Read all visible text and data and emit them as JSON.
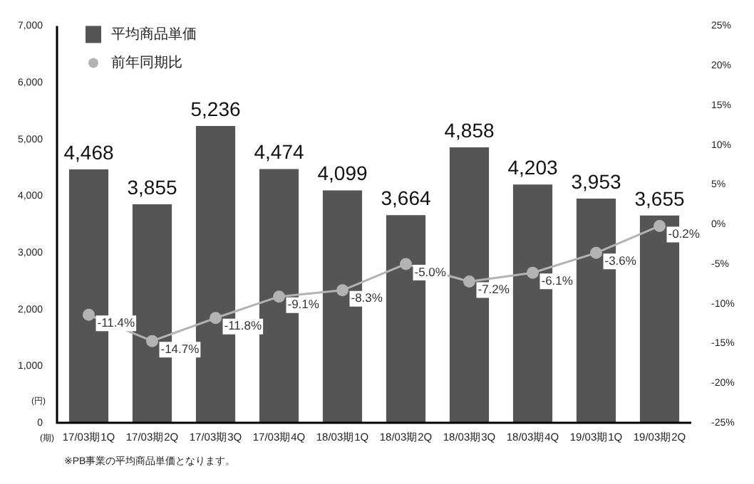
{
  "chart_data": {
    "type": "bar",
    "categories": [
      "17/03期1Q",
      "17/03期2Q",
      "17/03期3Q",
      "17/03期4Q",
      "18/03期1Q",
      "18/03期2Q",
      "18/03期3Q",
      "18/03期4Q",
      "19/03期1Q",
      "19/03期2Q"
    ],
    "series": [
      {
        "name": "平均商品単価",
        "color": "#555555",
        "values": [
          4468,
          3855,
          5236,
          4474,
          4099,
          3664,
          4858,
          4203,
          3953,
          3655
        ],
        "value_labels": [
          "4,468",
          "3,855",
          "5,236",
          "4,474",
          "4,099",
          "3,664",
          "4,858",
          "4,203",
          "3,953",
          "3,655"
        ]
      },
      {
        "name": "前年同期比",
        "type": "line",
        "axis": "y2",
        "color": "#b3b3b3",
        "values": [
          -11.4,
          -14.7,
          -11.8,
          -9.1,
          -8.3,
          -5.0,
          -7.2,
          -6.1,
          -3.6,
          -0.2
        ],
        "value_labels": [
          "-11.4%",
          "-14.7%",
          "-11.8%",
          "-9.1%",
          "-8.3%",
          "-5.0%",
          "-7.2%",
          "-6.1%",
          "-3.6%",
          "-0.2%"
        ]
      }
    ],
    "ylim": [
      0,
      7000
    ],
    "yticks": [
      0,
      {
        "value": 1000,
        "label": "1,000"
      },
      {
        "value": 2000,
        "label": "2,000"
      },
      {
        "value": 3000,
        "label": "3,000"
      },
      {
        "value": 4000,
        "label": "4,000"
      },
      {
        "value": 5000,
        "label": "5,000"
      },
      {
        "value": 6000,
        "label": "6,000"
      },
      {
        "value": 7000,
        "label": "7,000"
      }
    ],
    "y2lim": [
      -25,
      25
    ],
    "y2ticks": [
      {
        "value": -25,
        "label": "-25%"
      },
      {
        "value": -20,
        "label": "-20%"
      },
      {
        "value": -15,
        "label": "-15%"
      },
      {
        "value": -10,
        "label": "-10%"
      },
      {
        "value": -5,
        "label": "-5%"
      },
      {
        "value": 0,
        "label": "0%"
      },
      {
        "value": 5,
        "label": "5%"
      },
      {
        "value": 10,
        "label": "10%"
      },
      {
        "value": 15,
        "label": "15%"
      },
      {
        "value": 20,
        "label": "20%"
      },
      {
        "value": 25,
        "label": "25%"
      }
    ],
    "grid": false,
    "legend": "top left",
    "marker": "circle",
    "line_style": "solid",
    "annotations": [
      "(円)",
      "(期)",
      "※PB事業の平均商品単価となります。"
    ]
  }
}
